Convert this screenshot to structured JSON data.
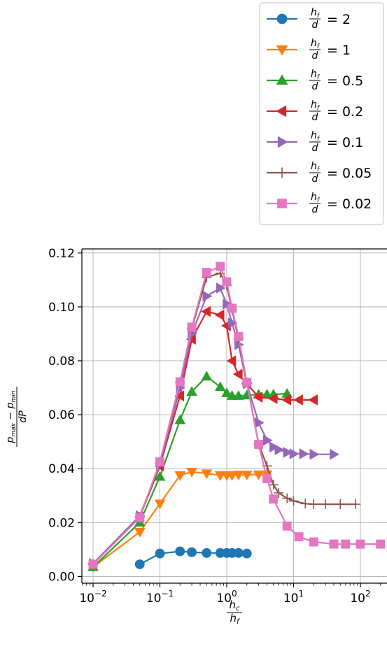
{
  "chart_data": {
    "type": "line",
    "xscale": "log",
    "xlim": [
      0.0068,
      250
    ],
    "ylim": [
      -0.0025,
      0.1215
    ],
    "xticks": [
      {
        "value": 0.01,
        "base": "10",
        "exp": "−2"
      },
      {
        "value": 0.1,
        "base": "10",
        "exp": "−1"
      },
      {
        "value": 1,
        "base": "10",
        "exp": "0"
      },
      {
        "value": 10,
        "base": "10",
        "exp": "1"
      },
      {
        "value": 100,
        "base": "10",
        "exp": "2"
      }
    ],
    "yticks": [
      {
        "value": 0.0,
        "label": "0.00"
      },
      {
        "value": 0.02,
        "label": "0.02"
      },
      {
        "value": 0.04,
        "label": "0.04"
      },
      {
        "value": 0.06,
        "label": "0.06"
      },
      {
        "value": 0.08,
        "label": "0.08"
      },
      {
        "value": 0.1,
        "label": "0.10"
      },
      {
        "value": 0.12,
        "label": "0.12"
      }
    ],
    "xlabel": {
      "num": "h",
      "num_sub": "c",
      "den": "h",
      "den_sub": "f"
    },
    "ylabel": {
      "num": "p",
      "num_sub1": "max",
      "minus": " − ",
      "num2": "p",
      "num_sub2": "min",
      "den": "dP"
    },
    "grid": true,
    "legend_position": "above-right",
    "legend_label": {
      "frac_num": "h",
      "frac_num_sub": "f",
      "frac_den": "d"
    },
    "series": [
      {
        "name": "= 2",
        "color": "#1f77b4",
        "marker": "circle",
        "points": [
          [
            0.05,
            0.0045
          ],
          [
            0.1,
            0.0085
          ],
          [
            0.2,
            0.0093
          ],
          [
            0.3,
            0.009
          ],
          [
            0.5,
            0.0087
          ],
          [
            0.8,
            0.0087
          ],
          [
            1.0,
            0.0087
          ],
          [
            1.2,
            0.0087
          ],
          [
            1.5,
            0.0087
          ],
          [
            2.0,
            0.0085
          ]
        ]
      },
      {
        "name": "= 1",
        "color": "#ff7f0e",
        "marker": "triangle-down",
        "points": [
          [
            0.01,
            0.0035
          ],
          [
            0.05,
            0.0165
          ],
          [
            0.1,
            0.027
          ],
          [
            0.2,
            0.0375
          ],
          [
            0.3,
            0.0388
          ],
          [
            0.5,
            0.0382
          ],
          [
            0.8,
            0.0375
          ],
          [
            1.0,
            0.0375
          ],
          [
            1.2,
            0.0375
          ],
          [
            1.5,
            0.0377
          ],
          [
            2.0,
            0.0377
          ],
          [
            3.0,
            0.0378
          ],
          [
            4.0,
            0.0378
          ]
        ]
      },
      {
        "name": "= 0.5",
        "color": "#2ca02c",
        "marker": "triangle-up",
        "points": [
          [
            0.01,
            0.0035
          ],
          [
            0.05,
            0.02
          ],
          [
            0.1,
            0.037
          ],
          [
            0.2,
            0.058
          ],
          [
            0.3,
            0.0685
          ],
          [
            0.5,
            0.0742
          ],
          [
            0.8,
            0.0703
          ],
          [
            1.0,
            0.068
          ],
          [
            1.2,
            0.067
          ],
          [
            1.5,
            0.067
          ],
          [
            2.0,
            0.0672
          ],
          [
            3.0,
            0.0675
          ],
          [
            4.0,
            0.0675
          ],
          [
            5.0,
            0.0675
          ],
          [
            8.0,
            0.0678
          ]
        ]
      },
      {
        "name": "= 0.2",
        "color": "#d62728",
        "marker": "triangle-left",
        "points": [
          [
            0.01,
            0.0045
          ],
          [
            0.05,
            0.022
          ],
          [
            0.1,
            0.041
          ],
          [
            0.2,
            0.067
          ],
          [
            0.3,
            0.088
          ],
          [
            0.5,
            0.0983
          ],
          [
            0.8,
            0.097
          ],
          [
            1.0,
            0.093
          ],
          [
            1.2,
            0.08
          ],
          [
            1.5,
            0.075
          ],
          [
            2.0,
            0.0715
          ],
          [
            3.0,
            0.0665
          ],
          [
            5.0,
            0.066
          ],
          [
            8.0,
            0.0655
          ],
          [
            12.0,
            0.0655
          ],
          [
            20.0,
            0.0655
          ]
        ]
      },
      {
        "name": "= 0.1",
        "color": "#9467bd",
        "marker": "triangle-right",
        "points": [
          [
            0.01,
            0.0048
          ],
          [
            0.05,
            0.0225
          ],
          [
            0.1,
            0.0415
          ],
          [
            0.2,
            0.07
          ],
          [
            0.3,
            0.09
          ],
          [
            0.5,
            0.104
          ],
          [
            0.8,
            0.107
          ],
          [
            1.0,
            0.101
          ],
          [
            1.2,
            0.094
          ],
          [
            1.5,
            0.086
          ],
          [
            2.0,
            0.0715
          ],
          [
            3.0,
            0.057
          ],
          [
            4.0,
            0.0505
          ],
          [
            5.0,
            0.048
          ],
          [
            6.0,
            0.047
          ],
          [
            8.0,
            0.046
          ],
          [
            10.0,
            0.0455
          ],
          [
            14.0,
            0.0455
          ],
          [
            20.0,
            0.0453
          ],
          [
            40.0,
            0.0453
          ]
        ]
      },
      {
        "name": "= 0.05",
        "color": "#8c564b",
        "marker": "plus",
        "points": [
          [
            0.01,
            0.0045
          ],
          [
            0.05,
            0.022
          ],
          [
            0.1,
            0.042
          ],
          [
            0.2,
            0.072
          ],
          [
            0.3,
            0.092
          ],
          [
            0.5,
            0.111
          ],
          [
            0.8,
            0.1125
          ],
          [
            1.0,
            0.108
          ],
          [
            1.2,
            0.099
          ],
          [
            1.5,
            0.088
          ],
          [
            2.0,
            0.072
          ],
          [
            3.0,
            0.049
          ],
          [
            4.0,
            0.041
          ],
          [
            5.0,
            0.034
          ],
          [
            6.0,
            0.031
          ],
          [
            8.0,
            0.029
          ],
          [
            10.0,
            0.028
          ],
          [
            15.0,
            0.027
          ],
          [
            20.0,
            0.0268
          ],
          [
            30.0,
            0.0268
          ],
          [
            50.0,
            0.0268
          ],
          [
            85.0,
            0.0268
          ]
        ]
      },
      {
        "name": "= 0.02",
        "color": "#e377c2",
        "marker": "square",
        "points": [
          [
            0.01,
            0.0045
          ],
          [
            0.05,
            0.0218
          ],
          [
            0.1,
            0.0425
          ],
          [
            0.2,
            0.0722
          ],
          [
            0.3,
            0.0925
          ],
          [
            0.5,
            0.1128
          ],
          [
            0.8,
            0.115
          ],
          [
            1.0,
            0.1093
          ],
          [
            1.2,
            0.0995
          ],
          [
            1.5,
            0.089
          ],
          [
            2.0,
            0.072
          ],
          [
            3.0,
            0.049
          ],
          [
            4.0,
            0.0363
          ],
          [
            5.0,
            0.0287
          ],
          [
            8.0,
            0.0187
          ],
          [
            12.0,
            0.0147
          ],
          [
            20.0,
            0.0128
          ],
          [
            40.0,
            0.012
          ],
          [
            60.0,
            0.012
          ],
          [
            100.0,
            0.012
          ],
          [
            200.0,
            0.012
          ]
        ]
      }
    ]
  }
}
